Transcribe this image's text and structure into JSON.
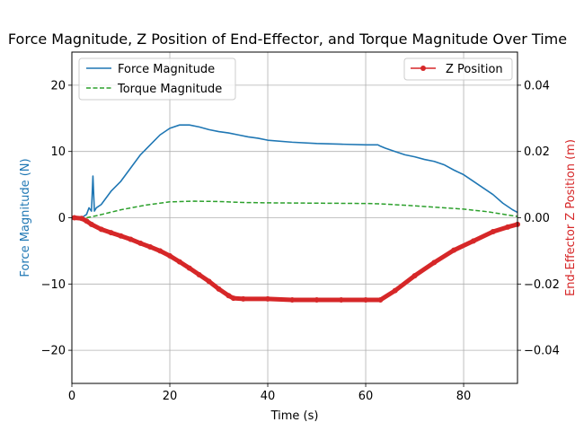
{
  "chart_data": {
    "type": "line",
    "title": "Force Magnitude, Z Position of End-Effector, and Torque Magnitude Over Time",
    "xlabel": "Time (s)",
    "ylabel_left": "Force Magnitude (N)",
    "ylabel_right": "End-Effector Z Position (m)",
    "xlim": [
      0,
      91
    ],
    "ylim_left": [
      -25,
      25
    ],
    "ylim_right": [
      -0.05,
      0.05
    ],
    "x_ticks": [
      0,
      20,
      40,
      60,
      80
    ],
    "y_ticks_left": [
      -20,
      -10,
      0,
      10,
      20
    ],
    "y_ticks_right": [
      "-0.04",
      "-0.02",
      "0.00",
      "0.02",
      "0.04"
    ],
    "grid": true,
    "legend_left_position": "upper-left",
    "legend_right_position": "upper-right",
    "colors": {
      "force": "#1f77b4",
      "torque": "#2ca02c",
      "z": "#d62728",
      "left_axis_label": "#1f77b4",
      "right_axis_label": "#d62728",
      "grid": "#b0b0b0"
    },
    "series": [
      {
        "name": "Force Magnitude",
        "axis": "left",
        "style": "solid",
        "x": [
          2,
          3,
          3.5,
          4,
          4.3,
          4.6,
          5,
          6,
          8,
          10,
          12,
          14,
          16,
          18,
          20,
          22,
          24,
          26,
          28,
          30,
          32,
          34,
          36,
          38,
          40,
          45,
          50,
          55,
          60,
          62.5,
          63,
          64,
          66,
          68,
          70,
          72,
          74,
          76,
          78,
          80,
          82,
          84,
          86,
          88,
          90,
          91
        ],
        "y": [
          0,
          0.5,
          1.5,
          1,
          6.3,
          1,
          1.5,
          2,
          4,
          5.5,
          7.5,
          9.5,
          11,
          12.5,
          13.5,
          14,
          14,
          13.7,
          13.3,
          13,
          12.8,
          12.5,
          12.2,
          12,
          11.7,
          11.4,
          11.2,
          11.1,
          11,
          11,
          10.8,
          10.5,
          10,
          9.5,
          9.2,
          8.8,
          8.5,
          8,
          7.2,
          6.5,
          5.5,
          4.5,
          3.5,
          2.2,
          1.2,
          0.8
        ]
      },
      {
        "name": "Torque Magnitude",
        "axis": "left",
        "style": "dashed",
        "x": [
          3,
          5,
          10,
          15,
          20,
          25,
          30,
          35,
          40,
          50,
          60,
          63,
          70,
          80,
          85,
          90,
          91
        ],
        "y": [
          0,
          0.3,
          1.2,
          1.9,
          2.4,
          2.5,
          2.45,
          2.3,
          2.25,
          2.2,
          2.15,
          2.1,
          1.8,
          1.3,
          0.9,
          0.3,
          0.2
        ]
      },
      {
        "name": "Z Position",
        "axis": "right",
        "style": "marker-line",
        "x": [
          0.5,
          2,
          3,
          4,
          6,
          8,
          10,
          12,
          14,
          16,
          18,
          20,
          22,
          24,
          26,
          28,
          30,
          32,
          33,
          35,
          40,
          45,
          50,
          55,
          60,
          63,
          66,
          70,
          74,
          78,
          82,
          86,
          89,
          91
        ],
        "y": [
          0,
          -0.0002,
          -0.001,
          -0.002,
          -0.0035,
          -0.0045,
          -0.0055,
          -0.0065,
          -0.0077,
          -0.0088,
          -0.01,
          -0.0115,
          -0.0133,
          -0.0152,
          -0.0172,
          -0.0192,
          -0.0215,
          -0.0235,
          -0.0243,
          -0.0245,
          -0.0245,
          -0.0248,
          -0.0248,
          -0.0248,
          -0.0248,
          -0.0248,
          -0.022,
          -0.0175,
          -0.0135,
          -0.0098,
          -0.007,
          -0.0042,
          -0.0028,
          -0.002
        ]
      }
    ]
  }
}
